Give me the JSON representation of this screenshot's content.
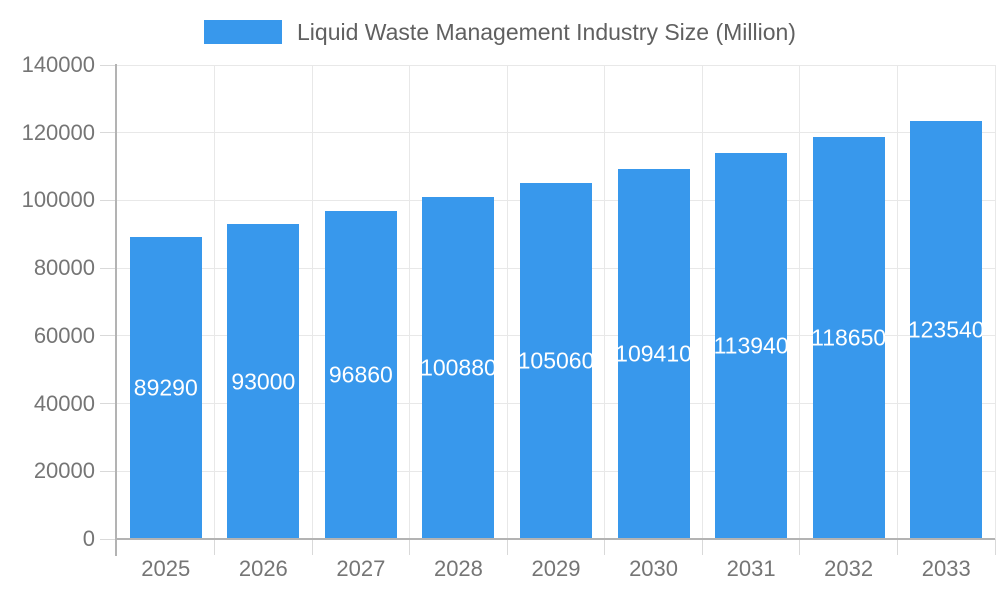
{
  "chart_data": {
    "type": "bar",
    "title": "Liquid Waste Management Industry Size (Million)",
    "categories": [
      "2025",
      "2026",
      "2027",
      "2028",
      "2029",
      "2030",
      "2031",
      "2032",
      "2033"
    ],
    "values": [
      89290,
      93000,
      96860,
      100880,
      105060,
      109410,
      113940,
      118650,
      123540
    ],
    "bar_labels": [
      "89290",
      "93000",
      "96860",
      "100880",
      "105060",
      "109410",
      "113940",
      "118650",
      "123540"
    ],
    "series": [
      {
        "name": "Liquid Waste Management Industry Size (Million)",
        "values": [
          89290,
          93000,
          96860,
          100880,
          105060,
          109410,
          113940,
          118650,
          123540
        ]
      }
    ],
    "xlabel": "",
    "ylabel": "",
    "ylim": [
      0,
      140000
    ],
    "yticks": [
      0,
      20000,
      40000,
      60000,
      80000,
      100000,
      120000,
      140000
    ],
    "ytick_labels": [
      "0",
      "20000",
      "40000",
      "60000",
      "80000",
      "100000",
      "120000",
      "140000"
    ],
    "grid": true,
    "legend_position": "top-center",
    "colors": {
      "bar": "#3898ec",
      "grid": "#e8e8e8",
      "axis_line": "#b3b3b3",
      "tick": "#d9d9d9",
      "axis_text": "#757575",
      "title_text": "#606060",
      "bar_label_text": "#ffffff",
      "background": "#ffffff"
    }
  }
}
